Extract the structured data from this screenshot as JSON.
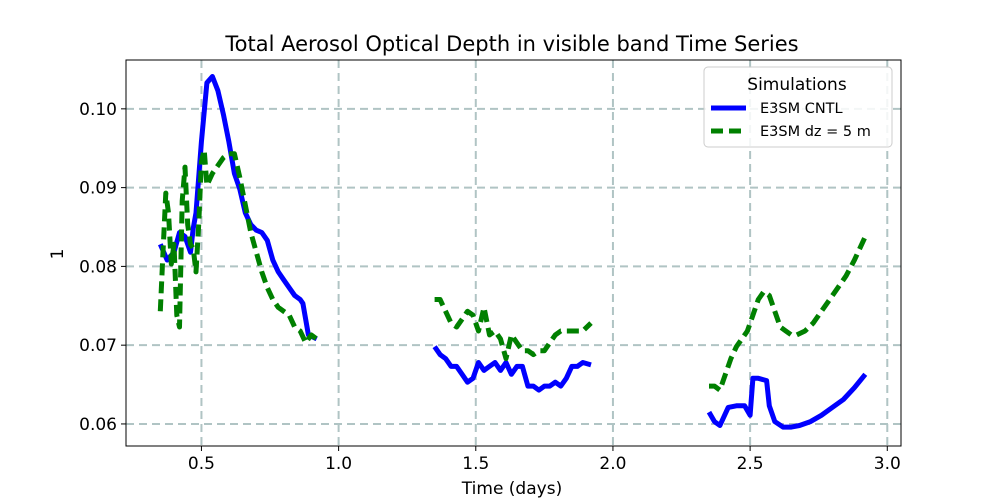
{
  "chart_data": {
    "type": "line",
    "title": "Total Aerosol Optical Depth in visible band Time Series",
    "xlabel": "Time (days)",
    "ylabel": "1",
    "xlim": [
      0.225,
      3.05
    ],
    "ylim": [
      0.0572,
      0.1062
    ],
    "xticks": [
      0.5,
      1.0,
      1.5,
      2.0,
      2.5,
      3.0
    ],
    "xtick_labels": [
      "0.5",
      "1.0",
      "1.5",
      "2.0",
      "2.5",
      "3.0"
    ],
    "yticks": [
      0.06,
      0.07,
      0.08,
      0.09,
      0.1
    ],
    "ytick_labels": [
      "0.06",
      "0.07",
      "0.08",
      "0.09",
      "0.10"
    ],
    "grid": true,
    "legend": {
      "title": "Simulations",
      "position": "top-right"
    },
    "series": [
      {
        "name": "E3SM CNTL",
        "color": "#0000ff",
        "style": "solid",
        "segments": [
          [
            [
              0.35,
              0.0828
            ],
            [
              0.375,
              0.0808
            ],
            [
              0.4,
              0.0818
            ],
            [
              0.42,
              0.0843
            ],
            [
              0.44,
              0.0838
            ],
            [
              0.46,
              0.0818
            ],
            [
              0.47,
              0.0848
            ],
            [
              0.48,
              0.0868
            ],
            [
              0.5,
              0.0958
            ],
            [
              0.52,
              0.1033
            ],
            [
              0.54,
              0.1041
            ],
            [
              0.56,
              0.1023
            ],
            [
              0.58,
              0.0993
            ],
            [
              0.6,
              0.0958
            ],
            [
              0.62,
              0.0918
            ],
            [
              0.64,
              0.0898
            ],
            [
              0.66,
              0.0868
            ],
            [
              0.68,
              0.0853
            ],
            [
              0.7,
              0.0846
            ],
            [
              0.72,
              0.0843
            ],
            [
              0.74,
              0.0833
            ],
            [
              0.76,
              0.0808
            ],
            [
              0.78,
              0.0793
            ],
            [
              0.8,
              0.0783
            ],
            [
              0.82,
              0.0773
            ],
            [
              0.84,
              0.0763
            ],
            [
              0.86,
              0.0758
            ],
            [
              0.87,
              0.0753
            ],
            [
              0.89,
              0.0713
            ],
            [
              0.92,
              0.0708
            ]
          ],
          [
            [
              1.35,
              0.0698
            ],
            [
              1.37,
              0.0688
            ],
            [
              1.39,
              0.0683
            ],
            [
              1.41,
              0.0673
            ],
            [
              1.43,
              0.0673
            ],
            [
              1.45,
              0.0663
            ],
            [
              1.47,
              0.0653
            ],
            [
              1.49,
              0.0658
            ],
            [
              1.51,
              0.0678
            ],
            [
              1.53,
              0.0668
            ],
            [
              1.55,
              0.0673
            ],
            [
              1.57,
              0.0678
            ],
            [
              1.59,
              0.0668
            ],
            [
              1.61,
              0.0678
            ],
            [
              1.63,
              0.0663
            ],
            [
              1.65,
              0.0673
            ],
            [
              1.67,
              0.0673
            ],
            [
              1.69,
              0.0648
            ],
            [
              1.71,
              0.0648
            ],
            [
              1.73,
              0.0643
            ],
            [
              1.75,
              0.0648
            ],
            [
              1.77,
              0.0648
            ],
            [
              1.79,
              0.0653
            ],
            [
              1.81,
              0.0648
            ],
            [
              1.83,
              0.0658
            ],
            [
              1.85,
              0.0673
            ],
            [
              1.87,
              0.0673
            ],
            [
              1.89,
              0.0678
            ],
            [
              1.92,
              0.0675
            ]
          ],
          [
            [
              2.35,
              0.0615
            ],
            [
              2.37,
              0.0603
            ],
            [
              2.39,
              0.0598
            ],
            [
              2.42,
              0.0621
            ],
            [
              2.45,
              0.0623
            ],
            [
              2.48,
              0.0623
            ],
            [
              2.5,
              0.0611
            ],
            [
              2.51,
              0.0658
            ],
            [
              2.53,
              0.0658
            ],
            [
              2.56,
              0.0655
            ],
            [
              2.57,
              0.0623
            ],
            [
              2.59,
              0.0603
            ],
            [
              2.62,
              0.0596
            ],
            [
              2.65,
              0.0596
            ],
            [
              2.68,
              0.0598
            ],
            [
              2.72,
              0.0603
            ],
            [
              2.76,
              0.0611
            ],
            [
              2.8,
              0.0621
            ],
            [
              2.84,
              0.0631
            ],
            [
              2.88,
              0.0646
            ],
            [
              2.92,
              0.0663
            ]
          ]
        ]
      },
      {
        "name": "E3SM dz = 5 m",
        "color": "#008000",
        "style": "dashed",
        "segments": [
          [
            [
              0.35,
              0.0743
            ],
            [
              0.36,
              0.0818
            ],
            [
              0.37,
              0.0893
            ],
            [
              0.38,
              0.0868
            ],
            [
              0.39,
              0.0803
            ],
            [
              0.4,
              0.0828
            ],
            [
              0.41,
              0.0738
            ],
            [
              0.42,
              0.0723
            ],
            [
              0.43,
              0.0883
            ],
            [
              0.44,
              0.0926
            ],
            [
              0.45,
              0.0853
            ],
            [
              0.46,
              0.0828
            ],
            [
              0.47,
              0.0823
            ],
            [
              0.48,
              0.0793
            ],
            [
              0.49,
              0.0853
            ],
            [
              0.5,
              0.0933
            ],
            [
              0.51,
              0.0948
            ],
            [
              0.52,
              0.0903
            ],
            [
              0.54,
              0.0918
            ],
            [
              0.56,
              0.0928
            ],
            [
              0.58,
              0.0938
            ],
            [
              0.6,
              0.0943
            ],
            [
              0.62,
              0.0943
            ],
            [
              0.64,
              0.0913
            ],
            [
              0.66,
              0.0878
            ],
            [
              0.68,
              0.0843
            ],
            [
              0.7,
              0.0818
            ],
            [
              0.72,
              0.0793
            ],
            [
              0.74,
              0.0773
            ],
            [
              0.76,
              0.0758
            ],
            [
              0.78,
              0.0748
            ],
            [
              0.8,
              0.0743
            ],
            [
              0.82,
              0.0738
            ],
            [
              0.84,
              0.0723
            ],
            [
              0.86,
              0.0718
            ],
            [
              0.88,
              0.0703
            ],
            [
              0.9,
              0.0713
            ],
            [
              0.92,
              0.0708
            ]
          ],
          [
            [
              1.35,
              0.0758
            ],
            [
              1.37,
              0.0758
            ],
            [
              1.39,
              0.0743
            ],
            [
              1.41,
              0.0728
            ],
            [
              1.43,
              0.0723
            ],
            [
              1.45,
              0.0733
            ],
            [
              1.47,
              0.0743
            ],
            [
              1.49,
              0.0738
            ],
            [
              1.51,
              0.0718
            ],
            [
              1.53,
              0.0748
            ],
            [
              1.55,
              0.0713
            ],
            [
              1.57,
              0.0718
            ],
            [
              1.59,
              0.0708
            ],
            [
              1.61,
              0.0683
            ],
            [
              1.63,
              0.0713
            ],
            [
              1.65,
              0.0703
            ],
            [
              1.67,
              0.0693
            ],
            [
              1.69,
              0.0693
            ],
            [
              1.71,
              0.0688
            ],
            [
              1.73,
              0.0693
            ],
            [
              1.75,
              0.0693
            ],
            [
              1.77,
              0.0703
            ],
            [
              1.79,
              0.0713
            ],
            [
              1.81,
              0.0718
            ],
            [
              1.83,
              0.0718
            ],
            [
              1.85,
              0.0718
            ],
            [
              1.87,
              0.0718
            ],
            [
              1.89,
              0.0718
            ],
            [
              1.92,
              0.0728
            ]
          ],
          [
            [
              2.35,
              0.0648
            ],
            [
              2.37,
              0.0648
            ],
            [
              2.39,
              0.0643
            ],
            [
              2.41,
              0.0663
            ],
            [
              2.43,
              0.0683
            ],
            [
              2.45,
              0.0698
            ],
            [
              2.47,
              0.0708
            ],
            [
              2.49,
              0.0718
            ],
            [
              2.51,
              0.0738
            ],
            [
              2.53,
              0.0758
            ],
            [
              2.55,
              0.0768
            ],
            [
              2.57,
              0.0763
            ],
            [
              2.59,
              0.0743
            ],
            [
              2.61,
              0.0723
            ],
            [
              2.63,
              0.0718
            ],
            [
              2.65,
              0.0713
            ],
            [
              2.67,
              0.0713
            ],
            [
              2.7,
              0.0718
            ],
            [
              2.73,
              0.0728
            ],
            [
              2.76,
              0.0743
            ],
            [
              2.79,
              0.0758
            ],
            [
              2.82,
              0.0773
            ],
            [
              2.85,
              0.0788
            ],
            [
              2.88,
              0.0808
            ],
            [
              2.92,
              0.0838
            ]
          ]
        ]
      }
    ]
  }
}
